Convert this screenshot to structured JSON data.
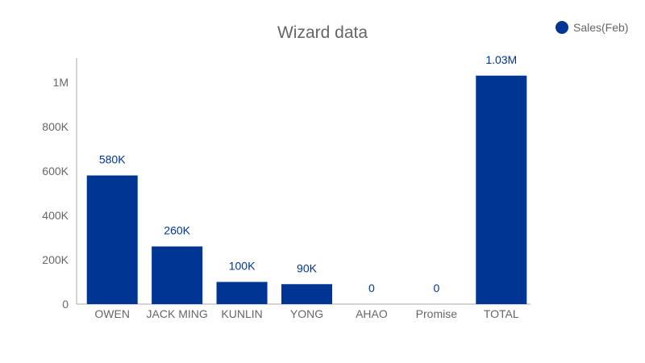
{
  "chart_data": {
    "type": "bar",
    "title": "Wizard data",
    "xlabel": "",
    "ylabel": "",
    "categories": [
      "OWEN",
      "JACK MING",
      "KUNLIN",
      "YONG",
      "AHAO",
      "Promise",
      "TOTAL"
    ],
    "series": [
      {
        "name": "Sales(Feb)",
        "values": [
          580000,
          260000,
          100000,
          90000,
          0,
          0,
          1030000
        ],
        "labels": [
          "580K",
          "260K",
          "100K",
          "90K",
          "0",
          "0",
          "1.03M"
        ],
        "color": "#003594"
      }
    ],
    "ylim": [
      0,
      1100000
    ],
    "yticks": [
      0,
      200000,
      400000,
      600000,
      800000,
      1000000
    ],
    "ytick_labels": [
      "0",
      "200K",
      "400K",
      "600K",
      "800K",
      "1M"
    ],
    "grid": false,
    "legend_position": "top-right"
  }
}
